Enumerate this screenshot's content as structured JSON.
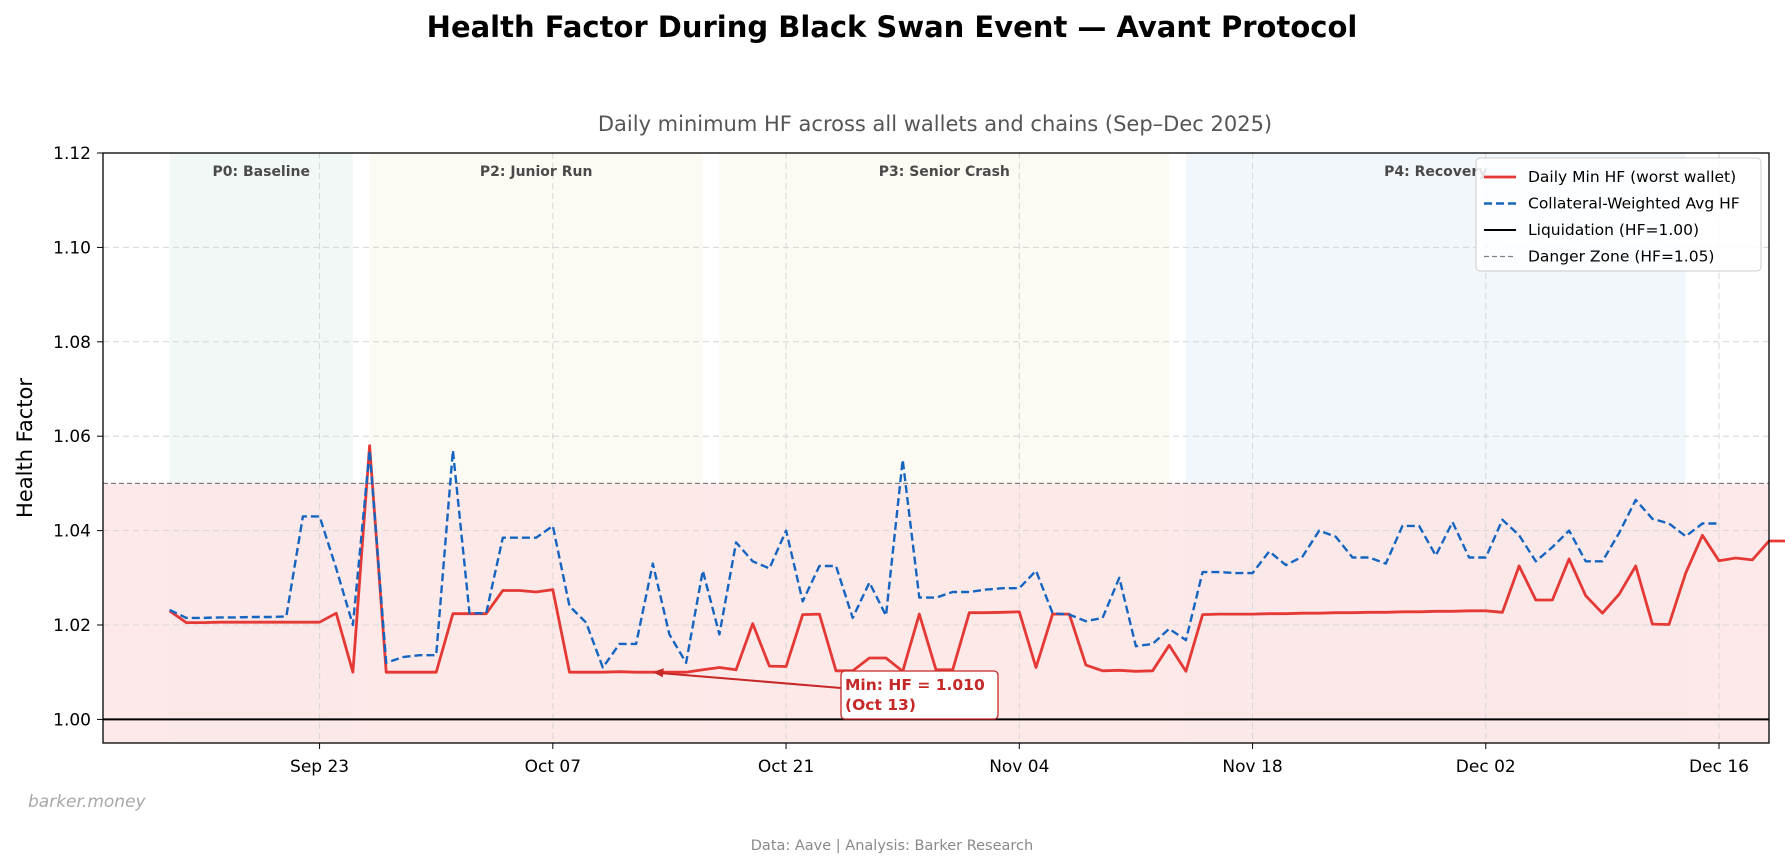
{
  "chart_data": {
    "type": "line",
    "title": "Health Factor During Black Swan Event — Avant Protocol",
    "subtitle": "Daily minimum HF across all wallets and chains (Sep–Dec 2025)",
    "xlabel": "",
    "ylabel": "Health Factor",
    "x_range": [
      "2025-09-10",
      "2025-12-19"
    ],
    "ylim": [
      0.995,
      1.12
    ],
    "yticks": [
      "1.00",
      "1.02",
      "1.04",
      "1.06",
      "1.08",
      "1.10",
      "1.12"
    ],
    "xticks": [
      {
        "date": "2025-09-23",
        "label": "Sep 23"
      },
      {
        "date": "2025-10-07",
        "label": "Oct 07"
      },
      {
        "date": "2025-10-21",
        "label": "Oct 21"
      },
      {
        "date": "2025-11-04",
        "label": "Nov 04"
      },
      {
        "date": "2025-11-18",
        "label": "Nov 18"
      },
      {
        "date": "2025-12-02",
        "label": "Dec 02"
      },
      {
        "date": "2025-12-16",
        "label": "Dec 16"
      }
    ],
    "grid": true,
    "legend_position": "top-right",
    "phases": [
      {
        "label": "P0: Baseline",
        "start": "2025-09-14",
        "end": "2025-09-25",
        "color": "#e8f3ec"
      },
      {
        "label": "P2: Junior Run",
        "start": "2025-09-26",
        "end": "2025-10-16",
        "color": "#fcf6ea"
      },
      {
        "label": "P3: Senior Crash",
        "start": "2025-10-17",
        "end": "2025-11-13",
        "color": "#fcf6ea"
      },
      {
        "label": "P4: Recovery",
        "start": "2025-11-14",
        "end": "2025-12-14",
        "color": "#e6f1f8"
      }
    ],
    "danger_zone": {
      "from": 1.0,
      "to": 1.05,
      "color": "#fde5e5"
    },
    "series": [
      {
        "name": "Daily Min HF (worst wallet)",
        "color": "#e53935",
        "style": "solid",
        "start_date": "2025-09-14",
        "values": [
          1.023,
          1.0205,
          1.0205,
          1.0206,
          1.0206,
          1.0206,
          1.0206,
          1.0206,
          1.0206,
          1.0206,
          1.0225,
          1.01,
          1.058,
          1.01,
          1.01,
          1.01,
          1.01,
          1.0224,
          1.0224,
          1.0224,
          1.0273,
          1.0273,
          1.027,
          1.0275,
          1.01,
          1.01,
          1.01,
          1.0101,
          1.01,
          1.01,
          1.01,
          1.01,
          1.0105,
          1.011,
          1.0105,
          1.0203,
          1.0113,
          1.0112,
          1.0222,
          1.0223,
          1.0103,
          1.0103,
          1.013,
          1.013,
          1.0102,
          1.0223,
          1.0105,
          1.0105,
          1.0226,
          1.0226,
          1.0227,
          1.0228,
          1.011,
          1.0223,
          1.0223,
          1.0115,
          1.0103,
          1.0104,
          1.0102,
          1.0103,
          1.0157,
          1.0102,
          1.0222,
          1.0223,
          1.0223,
          1.0223,
          1.0224,
          1.0224,
          1.0225,
          1.0225,
          1.0226,
          1.0226,
          1.0227,
          1.0227,
          1.0228,
          1.0228,
          1.0229,
          1.0229,
          1.023,
          1.023,
          1.0227,
          1.0325,
          1.0253,
          1.0253,
          1.034,
          1.0262,
          1.0225,
          1.0265,
          1.0325,
          1.0202,
          1.0201,
          1.031,
          1.039,
          1.0336,
          1.0342,
          1.0338,
          1.0378,
          1.0378
        ]
      },
      {
        "name": "Collateral-Weighted Avg HF",
        "color": "#1565c0",
        "style": "dashed",
        "start_date": "2025-09-14",
        "values": [
          1.0232,
          1.0215,
          1.0215,
          1.0216,
          1.0216,
          1.0217,
          1.0217,
          1.0218,
          1.043,
          1.043,
          1.032,
          1.02,
          1.057,
          1.012,
          1.0132,
          1.0136,
          1.0136,
          1.057,
          1.0225,
          1.0225,
          1.0385,
          1.0385,
          1.0385,
          1.041,
          1.024,
          1.0205,
          1.011,
          1.016,
          1.016,
          1.033,
          1.018,
          1.012,
          1.0315,
          1.018,
          1.0375,
          1.0335,
          1.032,
          1.04,
          1.025,
          1.0325,
          1.0325,
          1.0215,
          1.029,
          1.022,
          1.055,
          1.0258,
          1.0258,
          1.027,
          1.027,
          1.0275,
          1.0278,
          1.0278,
          1.0315,
          1.0225,
          1.0222,
          1.0208,
          1.0215,
          1.03,
          1.0155,
          1.016,
          1.0192,
          1.0168,
          1.0312,
          1.0312,
          1.031,
          1.031,
          1.0356,
          1.0327,
          1.0345,
          1.04,
          1.0387,
          1.0343,
          1.0343,
          1.033,
          1.041,
          1.041,
          1.0347,
          1.0418,
          1.0343,
          1.0343,
          1.0423,
          1.039,
          1.0335,
          1.0365,
          1.04,
          1.0335,
          1.0335,
          1.0395,
          1.0465,
          1.0425,
          1.0415,
          1.0388,
          1.0415,
          1.0415
        ]
      }
    ],
    "reference_lines": [
      {
        "name": "Liquidation (HF=1.00)",
        "y": 1.0,
        "color": "#000000",
        "style": "solid"
      },
      {
        "name": "Danger Zone (HF=1.05)",
        "y": 1.05,
        "color": "#808080",
        "style": "dashed"
      }
    ],
    "annotation": {
      "line1": "Min: HF = 1.010",
      "line2": "(Oct 13)",
      "target_date": "2025-10-13",
      "target_value": 1.01,
      "color": "#c62828"
    }
  },
  "footer": {
    "watermark": "barker.money",
    "source": "Data: Aave | Analysis: Barker Research"
  }
}
